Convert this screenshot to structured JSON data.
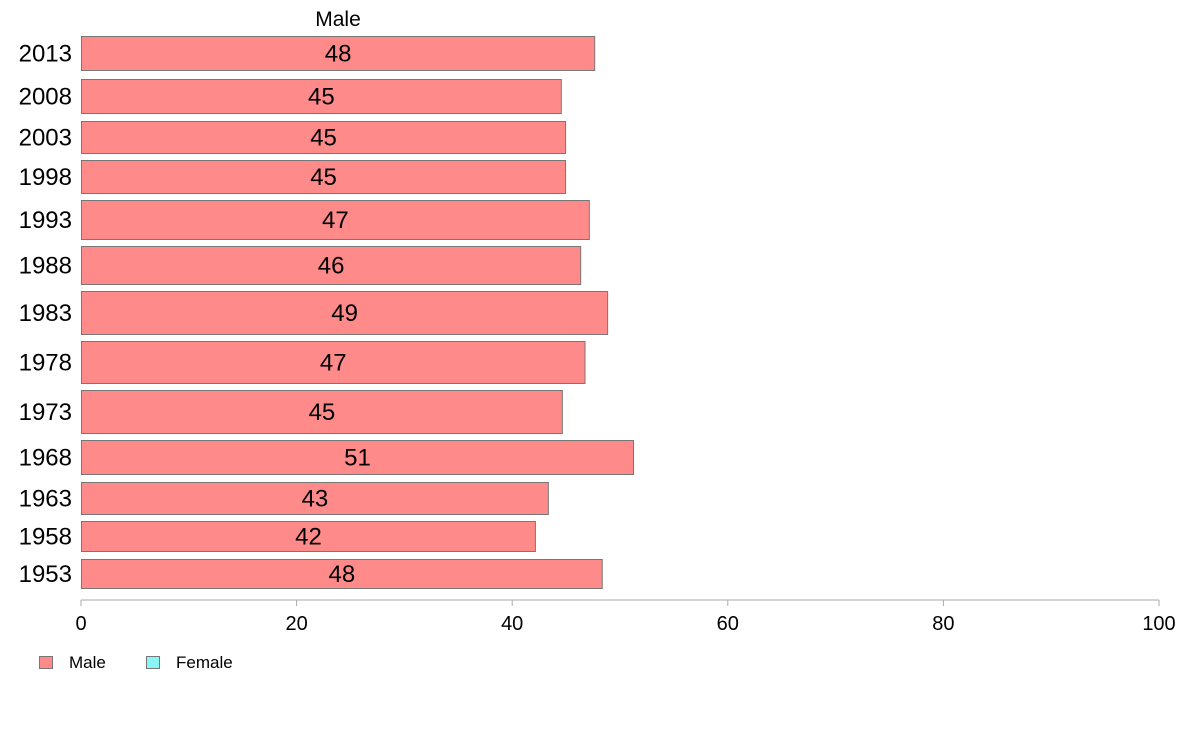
{
  "chart_data": {
    "type": "bar",
    "orientation": "horizontal",
    "title": "",
    "xlabel": "",
    "ylabel": "",
    "categories": [
      "2013",
      "2008",
      "2003",
      "1998",
      "1993",
      "1988",
      "1983",
      "1978",
      "1973",
      "1968",
      "1963",
      "1958",
      "1953"
    ],
    "series": [
      {
        "name": "Male",
        "color": "#ff8a8a",
        "values": [
          47.7,
          44.6,
          45.0,
          45.0,
          47.2,
          46.4,
          48.9,
          46.8,
          44.7,
          51.3,
          43.4,
          42.2,
          48.4
        ],
        "labels": [
          "48",
          "45",
          "45",
          "45",
          "47",
          "46",
          "49",
          "47",
          "45",
          "51",
          "43",
          "42",
          "48"
        ]
      }
    ],
    "series_title": "Male",
    "xlim": [
      0,
      100
    ],
    "xticks": [
      0,
      20,
      40,
      60,
      80,
      100
    ],
    "grid": false,
    "legend": {
      "placement": "bottom-left",
      "items": [
        {
          "name": "Male",
          "color": "#ff8a8a"
        },
        {
          "name": "Female",
          "color": "#8af5f5"
        }
      ]
    }
  }
}
